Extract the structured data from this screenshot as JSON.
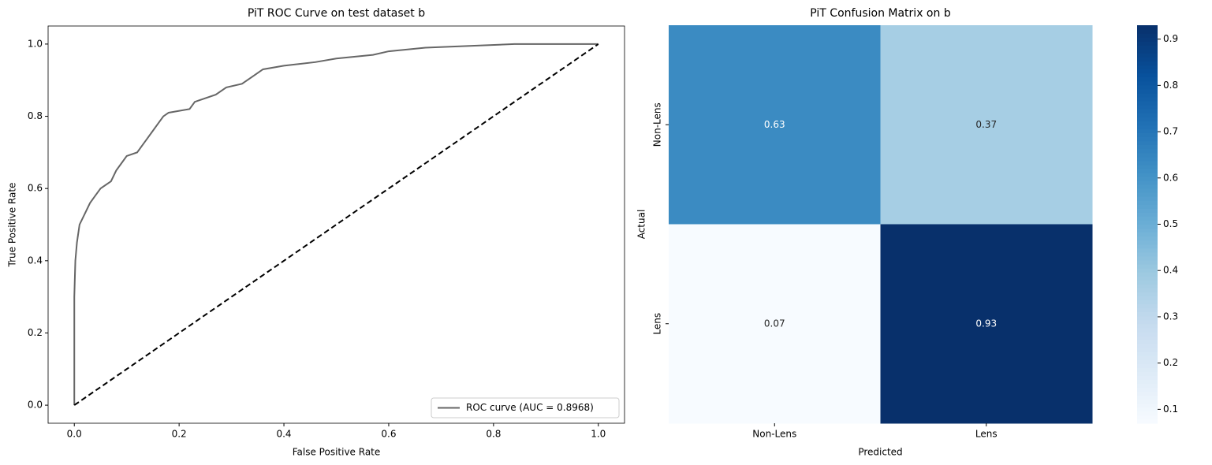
{
  "chart_data": [
    {
      "type": "line",
      "title": "PiT ROC Curve on test dataset b",
      "xlabel": "False Positive Rate",
      "ylabel": "True Positive Rate",
      "x": [
        0,
        0,
        0.002,
        0.005,
        0.01,
        0.02,
        0.03,
        0.04,
        0.05,
        0.07,
        0.08,
        0.09,
        0.1,
        0.12,
        0.13,
        0.14,
        0.15,
        0.16,
        0.17,
        0.18,
        0.22,
        0.23,
        0.27,
        0.29,
        0.32,
        0.34,
        0.36,
        0.4,
        0.46,
        0.5,
        0.57,
        0.6,
        0.67,
        0.84,
        1
      ],
      "series": [
        {
          "name": "ROC curve (AUC = 0.8968)",
          "color": "#666666",
          "values": [
            0,
            0.3,
            0.4,
            0.45,
            0.5,
            0.53,
            0.56,
            0.58,
            0.6,
            0.62,
            0.65,
            0.67,
            0.69,
            0.7,
            0.72,
            0.74,
            0.76,
            0.78,
            0.8,
            0.81,
            0.82,
            0.84,
            0.86,
            0.88,
            0.89,
            0.91,
            0.93,
            0.94,
            0.95,
            0.96,
            0.97,
            0.98,
            0.99,
            1.0,
            1.0
          ]
        },
        {
          "color": "#000000",
          "dashed": true,
          "x": [
            0,
            1
          ],
          "values": [
            0,
            1
          ]
        }
      ],
      "xlim": [
        -0.05,
        1.05
      ],
      "ylim": [
        -0.05,
        1.05
      ],
      "xticks": [
        {
          "value": 0,
          "label": "0.0"
        },
        0.2,
        0.4,
        0.6,
        0.8,
        {
          "value": 1,
          "label": "1.0"
        }
      ],
      "yticks": [
        {
          "value": 0,
          "label": "0.0"
        },
        0.2,
        0.4,
        0.6,
        0.8,
        {
          "value": 1,
          "label": "1.0"
        }
      ],
      "legend": "lower right"
    },
    {
      "type": "heatmap",
      "title": "PiT Confusion Matrix on b",
      "xlabel": "Predicted",
      "ylabel": "Actual",
      "x": [
        "Non-Lens",
        "Lens"
      ],
      "y": [
        "Non-Lens",
        "Lens"
      ],
      "values": [
        [
          0.63,
          0.37
        ],
        [
          0.07,
          0.93
        ]
      ],
      "cmap": "Blues",
      "clim": [
        0.07,
        0.93
      ],
      "cticks": [
        0.1,
        0.2,
        0.3,
        0.4,
        0.5,
        0.6,
        0.7,
        0.8,
        0.9
      ]
    }
  ]
}
